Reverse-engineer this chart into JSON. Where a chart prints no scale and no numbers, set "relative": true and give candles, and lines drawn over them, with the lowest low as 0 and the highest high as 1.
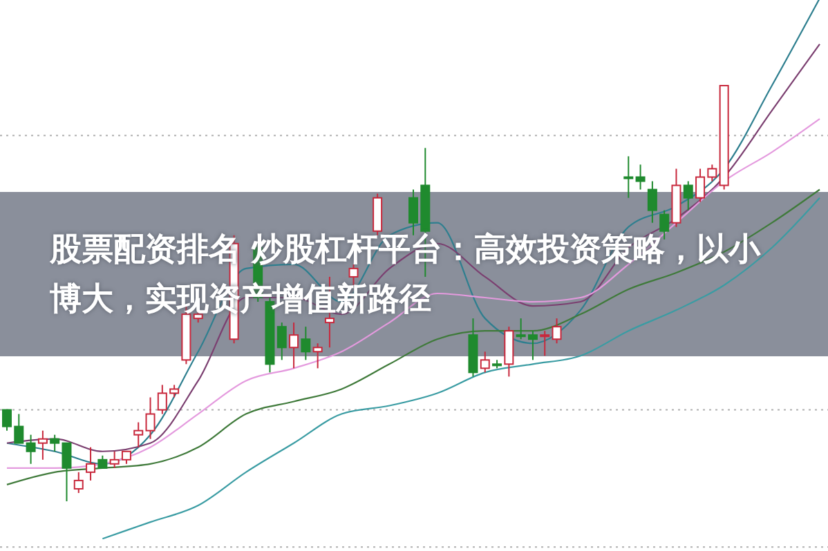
{
  "chart_data": {
    "type": "candlestick",
    "relative": true,
    "title": "股票配资排名  炒股杠杆平台：高效投资策略，以小博大，实现资产增值新路径",
    "categories": [
      null,
      null,
      null,
      null,
      null,
      null,
      null,
      null,
      null,
      null,
      null,
      null,
      null,
      null,
      null,
      null,
      null,
      null,
      null,
      null,
      null,
      null,
      null,
      null,
      null,
      null,
      null,
      null,
      null,
      null,
      null,
      null,
      null,
      null,
      null,
      null,
      null,
      null,
      null,
      null,
      null,
      null,
      null,
      null,
      null,
      null,
      null,
      null,
      null,
      null,
      null,
      null,
      null,
      null,
      null,
      null,
      null,
      null,
      null,
      null,
      null,
      null,
      null,
      null,
      null,
      null,
      null,
      null,
      null
    ],
    "ohlc": [
      [
        0.22,
        0.22,
        0.17,
        0.18
      ],
      [
        0.18,
        0.21,
        0.14,
        0.14
      ],
      [
        0.14,
        0.16,
        0.09,
        0.12
      ],
      [
        0.14,
        0.17,
        0.1,
        0.15
      ],
      [
        0.15,
        0.16,
        0.12,
        0.14
      ],
      [
        0.14,
        0.14,
        0,
        0.08
      ],
      [
        0.03,
        0.07,
        0.02,
        0.05
      ],
      [
        0.07,
        0.13,
        0.05,
        0.09
      ],
      [
        0.1,
        0.11,
        0.08,
        0.08
      ],
      [
        0.09,
        0.12,
        0.08,
        0.1
      ],
      [
        0.1,
        0.12,
        0.09,
        0.12
      ],
      [
        0.16,
        0.19,
        0.13,
        0.17
      ],
      [
        0.17,
        0.25,
        0.15,
        0.21
      ],
      [
        0.22,
        0.28,
        0.21,
        0.26
      ],
      [
        0.26,
        0.28,
        0.25,
        0.27
      ],
      [
        0.34,
        0.47,
        0.33,
        0.45
      ],
      [
        0.44,
        0.46,
        0.43,
        0.45
      ],
      null,
      null,
      [
        0.39,
        0.64,
        0.38,
        0.62
      ],
      null,
      [
        0.61,
        0.62,
        0.48,
        0.49
      ],
      [
        0.48,
        0.49,
        0.31,
        0.33
      ],
      [
        0.42,
        0.43,
        0.34,
        0.37
      ],
      [
        0.37,
        0.43,
        0.32,
        0.4
      ],
      [
        0.39,
        0.42,
        0.34,
        0.36
      ],
      [
        0.36,
        0.38,
        0.32,
        0.37
      ],
      [
        0.43,
        0.54,
        0.37,
        0.44
      ],
      null,
      [
        0.54,
        0.57,
        0.52,
        0.56
      ],
      null,
      [
        0.65,
        0.74,
        0.64,
        0.73
      ],
      null,
      null,
      [
        0.73,
        0.75,
        0.64,
        0.67
      ],
      [
        0.76,
        0.85,
        0.54,
        0.65
      ],
      null,
      null,
      null,
      [
        0.4,
        0.44,
        0.3,
        0.31
      ],
      [
        0.32,
        0.36,
        0.31,
        0.34
      ],
      [
        0.33,
        0.34,
        0.32,
        0.33
      ],
      [
        0.33,
        0.42,
        0.3,
        0.41
      ],
      [
        0.4,
        0.44,
        0.39,
        0.4
      ],
      [
        0.4,
        0.41,
        0.34,
        0.39
      ],
      [
        0.4,
        0.41,
        0.35,
        0.4
      ],
      [
        0.39,
        0.44,
        0.38,
        0.42
      ],
      null,
      null,
      null,
      null,
      null,
      [
        0.78,
        0.83,
        0.73,
        0.78
      ],
      [
        0.78,
        0.81,
        0.75,
        0.77
      ],
      [
        0.75,
        0.77,
        0.67,
        0.7
      ],
      [
        0.69,
        0.7,
        0.63,
        0.65
      ],
      [
        0.67,
        0.8,
        0.66,
        0.76
      ],
      [
        0.76,
        0.77,
        0.7,
        0.73
      ],
      [
        0.73,
        0.8,
        0.72,
        0.78
      ],
      [
        0.78,
        0.81,
        0.77,
        0.8
      ],
      [
        0.76,
        1,
        0.75,
        1
      ],
      null,
      null,
      null,
      null,
      null,
      null,
      null,
      null
    ],
    "colors": [
      "#1f8a2e",
      "#1f8a2e",
      "#1f8a2e",
      "#c8283c",
      "#1f8a2e",
      "#1f8a2e",
      "#c8283c",
      "#c8283c",
      "#1f8a2e",
      "#c8283c",
      "#c8283c",
      "#c8283c",
      "#c8283c",
      "#c8283c",
      "#c8283c",
      "#c8283c",
      "#c8283c",
      null,
      null,
      "#c8283c",
      null,
      "#1f8a2e",
      "#1f8a2e",
      "#1f8a2e",
      "#c8283c",
      "#1f8a2e",
      "#c8283c",
      "#c8283c",
      null,
      "#c8283c",
      null,
      "#c8283c",
      null,
      null,
      "#1f8a2e",
      "#1f8a2e",
      null,
      null,
      null,
      "#1f8a2e",
      "#c8283c",
      "#1f8a2e",
      "#c8283c",
      "#1f8a2e",
      "#1f8a2e",
      "#c8283c",
      "#c8283c",
      null,
      null,
      null,
      null,
      null,
      "#1f8a2e",
      "#1f8a2e",
      "#1f8a2e",
      "#1f8a2e",
      "#c8283c",
      "#1f8a2e",
      "#c8283c",
      "#c8283c",
      "#c8283c",
      null,
      null,
      null,
      null,
      null,
      null,
      null,
      null
    ],
    "series": [
      {
        "type": "line",
        "color": "#2e7f8f",
        "values": [
          0.14,
          null,
          null,
          null,
          0.12,
          null,
          null,
          null,
          0.09,
          null,
          null,
          null,
          0.16,
          null,
          null,
          null,
          0.36,
          null,
          null,
          null,
          0.56,
          null,
          null,
          null,
          0.57,
          null,
          null,
          null,
          0.48,
          null,
          null,
          null,
          0.64,
          null,
          null,
          null,
          0.67,
          null,
          null,
          null,
          0.44,
          null,
          null,
          null,
          0.38,
          null,
          null,
          null,
          0.46,
          null,
          null,
          null,
          0.66,
          null,
          null,
          null,
          0.71,
          null,
          null,
          null,
          0.8,
          null,
          null,
          null,
          1.0,
          null,
          null,
          null,
          1.21
        ]
      },
      {
        "type": "line",
        "color": "#7b3f70",
        "values": [
          0.14,
          null,
          null,
          null,
          0.15,
          null,
          null,
          null,
          0.12,
          null,
          null,
          null,
          0.14,
          null,
          null,
          null,
          0.29,
          null,
          null,
          null,
          0.49,
          null,
          null,
          null,
          0.49,
          null,
          null,
          null,
          0.45,
          null,
          null,
          null,
          0.56,
          null,
          null,
          null,
          0.62,
          null,
          null,
          null,
          0.54,
          null,
          null,
          null,
          0.47,
          null,
          null,
          null,
          0.48,
          null,
          null,
          null,
          0.61,
          null,
          null,
          null,
          0.68,
          null,
          null,
          null,
          0.78,
          null,
          null,
          null,
          0.94,
          null,
          null,
          null,
          1.1
        ]
      },
      {
        "type": "line",
        "color": "#e49ade",
        "values": [
          0.08,
          null,
          null,
          null,
          0.08,
          null,
          null,
          null,
          0.09,
          null,
          null,
          null,
          0.13,
          null,
          null,
          null,
          0.21,
          null,
          null,
          null,
          0.29,
          null,
          null,
          null,
          0.32,
          null,
          null,
          null,
          0.36,
          null,
          null,
          null,
          0.43,
          null,
          null,
          null,
          0.5,
          null,
          null,
          null,
          0.49,
          null,
          null,
          null,
          0.48,
          null,
          null,
          null,
          0.49,
          null,
          null,
          null,
          0.57,
          null,
          null,
          null,
          0.67,
          null,
          null,
          null,
          0.77,
          null,
          null,
          null,
          0.84,
          null,
          null,
          null,
          0.92
        ]
      },
      {
        "type": "line",
        "color": "#3f7a3a",
        "values": [
          0.04,
          null,
          null,
          null,
          0.07,
          null,
          null,
          null,
          0.08,
          null,
          null,
          null,
          0.09,
          null,
          null,
          null,
          0.13,
          null,
          null,
          null,
          0.21,
          null,
          null,
          null,
          0.24,
          null,
          null,
          null,
          0.27,
          null,
          null,
          null,
          0.33,
          null,
          null,
          null,
          0.39,
          null,
          null,
          null,
          0.41,
          null,
          null,
          null,
          0.41,
          null,
          null,
          null,
          0.45,
          null,
          null,
          null,
          0.51,
          null,
          null,
          null,
          0.55,
          null,
          null,
          null,
          0.6,
          null,
          null,
          null,
          0.67,
          null,
          null,
          null,
          0.75
        ]
      },
      {
        "type": "line",
        "color": "#3a9ca3",
        "values": [
          null,
          null,
          null,
          null,
          null,
          null,
          null,
          null,
          -0.09,
          null,
          null,
          null,
          -0.05,
          null,
          null,
          null,
          -0.01,
          null,
          null,
          null,
          0.07,
          null,
          null,
          null,
          0.14,
          null,
          null,
          null,
          0.21,
          null,
          null,
          null,
          0.23,
          null,
          null,
          null,
          0.26,
          null,
          null,
          null,
          0.31,
          null,
          null,
          null,
          0.33,
          null,
          null,
          null,
          0.35,
          null,
          null,
          null,
          0.41,
          null,
          null,
          null,
          0.46,
          null,
          null,
          null,
          0.52,
          null,
          null,
          null,
          0.61,
          null,
          null,
          null,
          0.73
        ]
      }
    ],
    "ref_lines": [
      {
        "axis": "y",
        "value": 0.88,
        "color": "#b0b0b0",
        "line_style": "dotted"
      },
      {
        "axis": "y",
        "value": 0.22,
        "color": "#b0b0b0",
        "line_style": "dotted"
      },
      {
        "axis": "y",
        "value": -0.11,
        "color": "#b0b0b0",
        "line_style": "dotted"
      }
    ]
  }
}
